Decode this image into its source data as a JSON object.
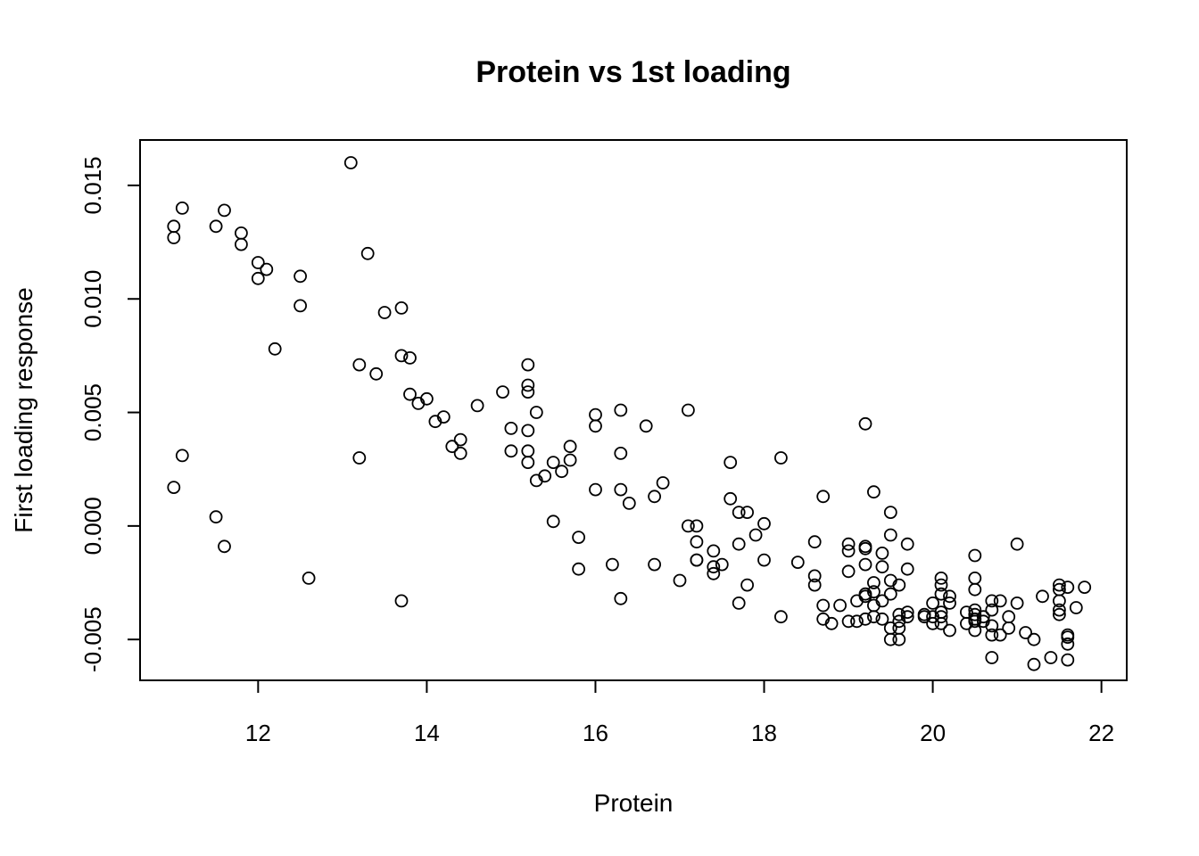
{
  "chart_data": {
    "type": "scatter",
    "title": "Protein vs 1st loading",
    "xlabel": "Protein",
    "ylabel": "First loading response",
    "xlim": [
      10.6,
      22.3
    ],
    "ylim": [
      -0.0068,
      0.017
    ],
    "xticks": [
      12,
      14,
      16,
      18,
      20,
      22
    ],
    "xtick_labels": [
      "12",
      "14",
      "16",
      "18",
      "20",
      "22"
    ],
    "yticks": [
      -0.005,
      0.0,
      0.005,
      0.01,
      0.015
    ],
    "ytick_labels": [
      "-0.005",
      "0.000",
      "0.005",
      "0.010",
      "0.015"
    ],
    "grid": false,
    "marker": "open-circle",
    "points": [
      [
        11.0,
        0.0132
      ],
      [
        11.0,
        0.0127
      ],
      [
        11.1,
        0.014
      ],
      [
        11.0,
        0.0017
      ],
      [
        11.1,
        0.0031
      ],
      [
        11.5,
        0.0132
      ],
      [
        11.6,
        0.0139
      ],
      [
        11.5,
        0.0004
      ],
      [
        11.6,
        -0.0009
      ],
      [
        11.8,
        0.0129
      ],
      [
        11.8,
        0.0124
      ],
      [
        12.0,
        0.0116
      ],
      [
        12.0,
        0.0109
      ],
      [
        12.1,
        0.0113
      ],
      [
        12.2,
        0.0078
      ],
      [
        12.5,
        0.011
      ],
      [
        12.5,
        0.0097
      ],
      [
        12.6,
        -0.0023
      ],
      [
        13.1,
        0.016
      ],
      [
        13.2,
        0.0071
      ],
      [
        13.2,
        0.003
      ],
      [
        13.3,
        0.012
      ],
      [
        13.4,
        0.0067
      ],
      [
        13.5,
        0.0094
      ],
      [
        13.7,
        0.0096
      ],
      [
        13.7,
        0.0075
      ],
      [
        13.8,
        0.0074
      ],
      [
        13.8,
        0.0058
      ],
      [
        13.7,
        -0.0033
      ],
      [
        13.9,
        0.0054
      ],
      [
        14.0,
        0.0056
      ],
      [
        14.1,
        0.0046
      ],
      [
        14.2,
        0.0048
      ],
      [
        14.3,
        0.0035
      ],
      [
        14.4,
        0.0038
      ],
      [
        14.4,
        0.0032
      ],
      [
        14.6,
        0.0053
      ],
      [
        14.9,
        0.0059
      ],
      [
        15.0,
        0.0043
      ],
      [
        15.0,
        0.0033
      ],
      [
        15.2,
        0.0071
      ],
      [
        15.2,
        0.0062
      ],
      [
        15.2,
        0.0059
      ],
      [
        15.2,
        0.0042
      ],
      [
        15.2,
        0.0033
      ],
      [
        15.2,
        0.0028
      ],
      [
        15.3,
        0.005
      ],
      [
        15.3,
        0.002
      ],
      [
        15.4,
        0.0022
      ],
      [
        15.5,
        0.0028
      ],
      [
        15.5,
        0.0002
      ],
      [
        15.6,
        0.0024
      ],
      [
        15.7,
        0.0035
      ],
      [
        15.7,
        0.0029
      ],
      [
        15.8,
        -0.0005
      ],
      [
        15.8,
        -0.0019
      ],
      [
        16.0,
        0.0049
      ],
      [
        16.0,
        0.0044
      ],
      [
        16.0,
        0.0016
      ],
      [
        16.2,
        -0.0017
      ],
      [
        16.3,
        0.0051
      ],
      [
        16.3,
        0.0032
      ],
      [
        16.3,
        0.0016
      ],
      [
        16.3,
        -0.0032
      ],
      [
        16.4,
        0.001
      ],
      [
        16.6,
        0.0044
      ],
      [
        16.7,
        0.0013
      ],
      [
        16.7,
        -0.0017
      ],
      [
        16.8,
        0.0019
      ],
      [
        17.0,
        -0.0024
      ],
      [
        17.1,
        0.0051
      ],
      [
        17.1,
        -0.0
      ],
      [
        17.2,
        0.0
      ],
      [
        17.2,
        -0.0007
      ],
      [
        17.2,
        -0.0015
      ],
      [
        17.2,
        -0.0015
      ],
      [
        17.4,
        -0.0011
      ],
      [
        17.4,
        -0.0018
      ],
      [
        17.4,
        -0.0021
      ],
      [
        17.5,
        -0.0017
      ],
      [
        17.6,
        0.0028
      ],
      [
        17.6,
        0.0012
      ],
      [
        17.7,
        0.0006
      ],
      [
        17.7,
        -0.0008
      ],
      [
        17.7,
        -0.0034
      ],
      [
        17.8,
        0.0006
      ],
      [
        17.8,
        -0.0026
      ],
      [
        17.9,
        -0.0004
      ],
      [
        18.0,
        0.0001
      ],
      [
        18.0,
        -0.0015
      ],
      [
        18.2,
        0.003
      ],
      [
        18.2,
        -0.004
      ],
      [
        18.4,
        -0.0016
      ],
      [
        18.6,
        -0.0007
      ],
      [
        18.6,
        -0.0022
      ],
      [
        18.6,
        -0.0026
      ],
      [
        18.7,
        0.0013
      ],
      [
        18.7,
        -0.0035
      ],
      [
        18.7,
        -0.0041
      ],
      [
        18.8,
        -0.0043
      ],
      [
        18.9,
        -0.0035
      ],
      [
        19.0,
        -0.0008
      ],
      [
        19.0,
        -0.0011
      ],
      [
        19.0,
        -0.002
      ],
      [
        19.0,
        -0.0042
      ],
      [
        19.1,
        -0.0033
      ],
      [
        19.1,
        -0.0042
      ],
      [
        19.2,
        0.0045
      ],
      [
        19.2,
        -0.0009
      ],
      [
        19.2,
        -0.001
      ],
      [
        19.2,
        -0.0017
      ],
      [
        19.2,
        -0.003
      ],
      [
        19.2,
        -0.0031
      ],
      [
        19.2,
        -0.0041
      ],
      [
        19.3,
        0.0015
      ],
      [
        19.3,
        -0.0025
      ],
      [
        19.3,
        -0.0029
      ],
      [
        19.3,
        -0.0035
      ],
      [
        19.3,
        -0.004
      ],
      [
        19.4,
        -0.0012
      ],
      [
        19.4,
        -0.0018
      ],
      [
        19.4,
        -0.0033
      ],
      [
        19.4,
        -0.0041
      ],
      [
        19.5,
        0.0006
      ],
      [
        19.5,
        -0.0004
      ],
      [
        19.5,
        -0.0024
      ],
      [
        19.5,
        -0.003
      ],
      [
        19.5,
        -0.0045
      ],
      [
        19.5,
        -0.005
      ],
      [
        19.6,
        -0.0026
      ],
      [
        19.6,
        -0.0039
      ],
      [
        19.6,
        -0.0042
      ],
      [
        19.6,
        -0.0045
      ],
      [
        19.6,
        -0.005
      ],
      [
        19.7,
        -0.0008
      ],
      [
        19.7,
        -0.0019
      ],
      [
        19.7,
        -0.0038
      ],
      [
        19.7,
        -0.004
      ],
      [
        19.9,
        -0.0039
      ],
      [
        19.9,
        -0.004
      ],
      [
        20.0,
        -0.0034
      ],
      [
        20.0,
        -0.004
      ],
      [
        20.0,
        -0.0043
      ],
      [
        20.1,
        -0.0023
      ],
      [
        20.1,
        -0.0026
      ],
      [
        20.1,
        -0.003
      ],
      [
        20.1,
        -0.0038
      ],
      [
        20.1,
        -0.004
      ],
      [
        20.1,
        -0.0043
      ],
      [
        20.2,
        -0.0031
      ],
      [
        20.2,
        -0.0034
      ],
      [
        20.2,
        -0.0046
      ],
      [
        20.4,
        -0.0038
      ],
      [
        20.4,
        -0.0043
      ],
      [
        20.5,
        -0.0013
      ],
      [
        20.5,
        -0.0023
      ],
      [
        20.5,
        -0.0028
      ],
      [
        20.5,
        -0.0037
      ],
      [
        20.5,
        -0.0039
      ],
      [
        20.5,
        -0.0041
      ],
      [
        20.5,
        -0.0042
      ],
      [
        20.5,
        -0.0046
      ],
      [
        20.6,
        -0.004
      ],
      [
        20.6,
        -0.0042
      ],
      [
        20.7,
        -0.0033
      ],
      [
        20.7,
        -0.0037
      ],
      [
        20.7,
        -0.0044
      ],
      [
        20.7,
        -0.0048
      ],
      [
        20.7,
        -0.0058
      ],
      [
        20.8,
        -0.0033
      ],
      [
        20.8,
        -0.0048
      ],
      [
        20.9,
        -0.004
      ],
      [
        20.9,
        -0.0045
      ],
      [
        21.0,
        -0.0008
      ],
      [
        21.0,
        -0.0034
      ],
      [
        21.1,
        -0.0047
      ],
      [
        21.2,
        -0.005
      ],
      [
        21.2,
        -0.0061
      ],
      [
        21.3,
        -0.0031
      ],
      [
        21.4,
        -0.0058
      ],
      [
        21.5,
        -0.0026
      ],
      [
        21.5,
        -0.0028
      ],
      [
        21.5,
        -0.0033
      ],
      [
        21.5,
        -0.0037
      ],
      [
        21.5,
        -0.0039
      ],
      [
        21.6,
        -0.0027
      ],
      [
        21.6,
        -0.0048
      ],
      [
        21.6,
        -0.0049
      ],
      [
        21.6,
        -0.0052
      ],
      [
        21.6,
        -0.0059
      ],
      [
        21.7,
        -0.0036
      ],
      [
        21.8,
        -0.0027
      ]
    ]
  }
}
